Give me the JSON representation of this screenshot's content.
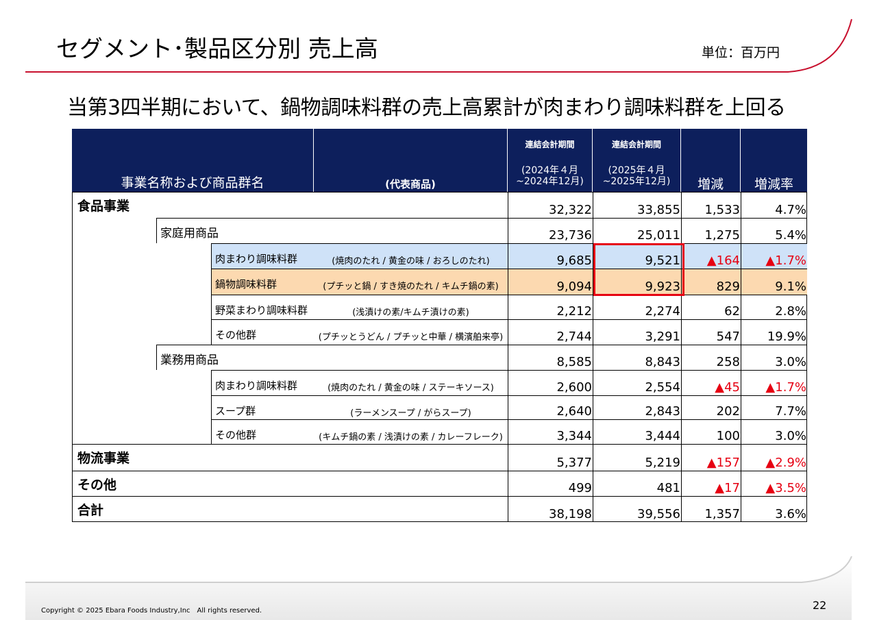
{
  "header": {
    "title": "セグメント･製品区分別 売上高",
    "unit": "単位：百万円",
    "subtitle": "当第3四半期において、鍋物調味料群の売上高累計が肉まわり調味料群を上回る"
  },
  "table": {
    "columns": {
      "name": "事業名称および商品群名",
      "product": "(代表商品)",
      "periods": [
        {
          "label": "連結会計期間",
          "line1": "(2024年４月",
          "line2": "~2024年12月)"
        },
        {
          "label": "連結会計期間",
          "line1": "(2025年４月",
          "line2": "~2025年12月)"
        }
      ],
      "change": "増減",
      "rate": "増減率"
    },
    "negative_color": "#e60012",
    "highlight_colors": {
      "blue": "#cfe2f8",
      "peach": "#fcd9b0"
    },
    "box_color": "#e60012",
    "rows": [
      {
        "level": 1,
        "name": "食品事業",
        "prior": "32,322",
        "current": "33,855",
        "change": "1,533",
        "rate": "4.7%"
      },
      {
        "level": 2,
        "name": "家庭用商品",
        "prior": "23,736",
        "current": "25,011",
        "change": "1,275",
        "rate": "5.4%"
      },
      {
        "level": 3,
        "name": "肉まわり調味料群",
        "product": "(焼肉のたれ / 黄金の味 / おろしのたれ)",
        "prior": "9,685",
        "current": "9,521",
        "change": "▲164",
        "rate": "▲1.7%",
        "negative": true,
        "highlight": "blue",
        "boxed": true
      },
      {
        "level": 3,
        "name": "鍋物調味料群",
        "product": "(プチッと鍋 / すき焼のたれ / キムチ鍋の素)",
        "prior": "9,094",
        "current": "9,923",
        "change": "829",
        "rate": "9.1%",
        "highlight": "peach",
        "boxed": true
      },
      {
        "level": 3,
        "name": "野菜まわり調味料群",
        "product": "(浅漬けの素/キムチ漬けの素)",
        "prior": "2,212",
        "current": "2,274",
        "change": "62",
        "rate": "2.8%"
      },
      {
        "level": 3,
        "name": "その他群",
        "product": "(プチッとうどん / プチッと中華 / 横濱舶来亭)",
        "prior": "2,744",
        "current": "3,291",
        "change": "547",
        "rate": "19.9%"
      },
      {
        "level": 2,
        "name": "業務用商品",
        "prior": "8,585",
        "current": "8,843",
        "change": "258",
        "rate": "3.0%"
      },
      {
        "level": 3,
        "name": "肉まわり調味料群",
        "product": "(焼肉のたれ / 黄金の味 / ステーキソース)",
        "prior": "2,600",
        "current": "2,554",
        "change": "▲45",
        "rate": "▲1.7%",
        "negative": true
      },
      {
        "level": 3,
        "name": "スープ群",
        "product": "(ラーメンスープ / がらスープ)",
        "prior": "2,640",
        "current": "2,843",
        "change": "202",
        "rate": "7.7%"
      },
      {
        "level": 3,
        "name": "その他群",
        "product": "(キムチ鍋の素 / 浅漬けの素 / カレーフレーク)",
        "prior": "3,344",
        "current": "3,444",
        "change": "100",
        "rate": "3.0%"
      },
      {
        "level": 1,
        "name": "物流事業",
        "prior": "5,377",
        "current": "5,219",
        "change": "▲157",
        "rate": "▲2.9%",
        "negative": true
      },
      {
        "level": 1,
        "name": "その他",
        "prior": "499",
        "current": "481",
        "change": "▲17",
        "rate": "▲3.5%",
        "negative": true
      },
      {
        "level": 1,
        "name": "合計",
        "prior": "38,198",
        "current": "39,556",
        "change": "1,357",
        "rate": "3.6%"
      }
    ]
  },
  "footer": {
    "copyright": "Copyright © 2025 Ebara Foods Industry,Inc　All rights reserved.",
    "page": "22"
  }
}
